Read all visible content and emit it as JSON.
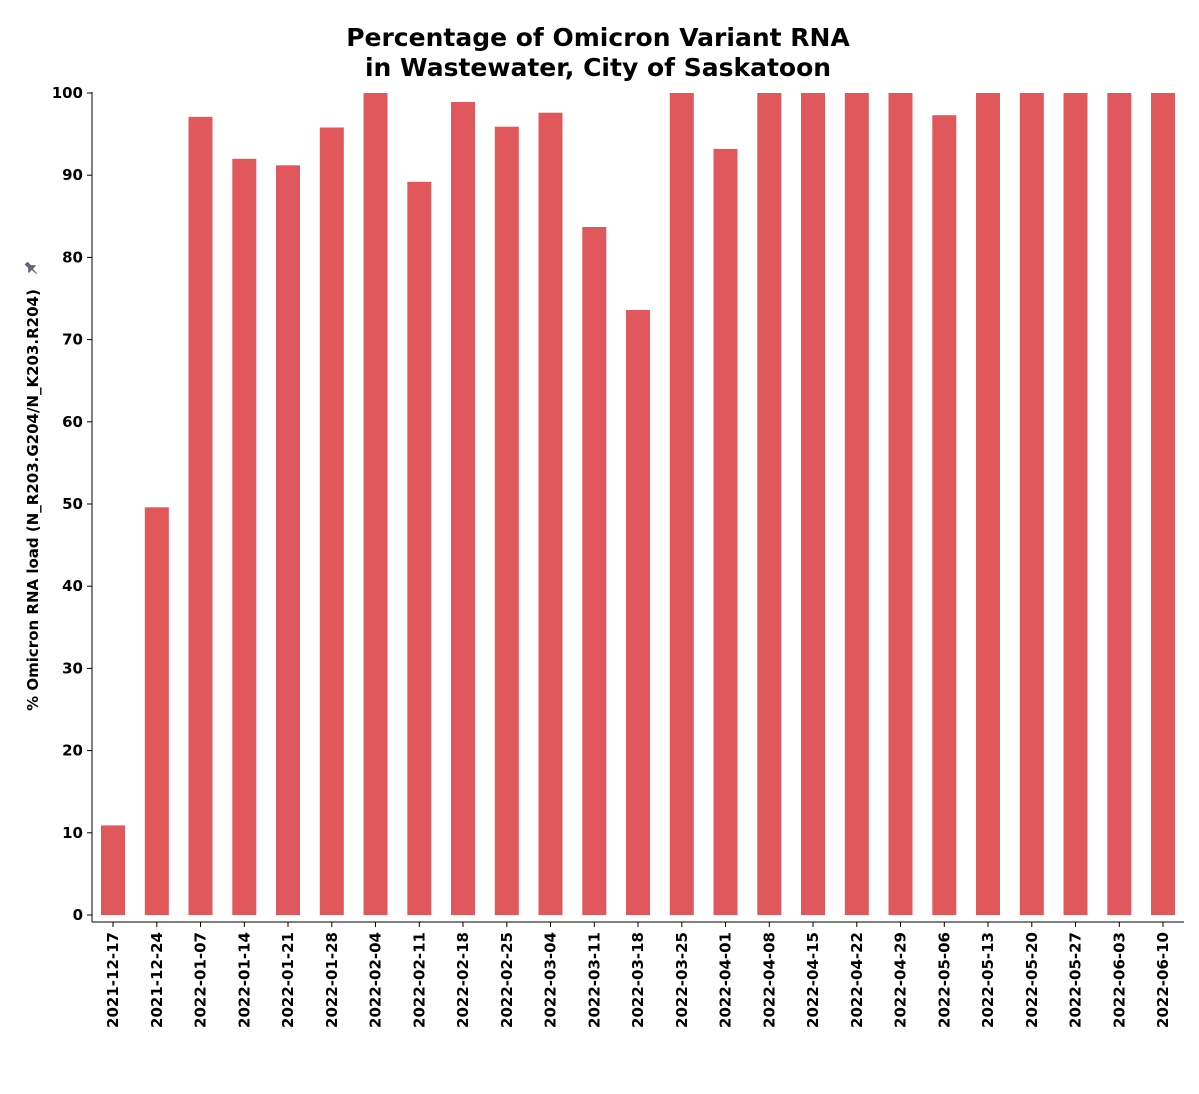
{
  "chart_data": {
    "type": "bar",
    "title_lines": [
      "Percentage of Omicron Variant RNA",
      "in Wastewater, City of Saskatoon"
    ],
    "xlabel": "",
    "ylabel": "% Omicron RNA load (N_R203.G204/N_K203.R204)",
    "ylim": [
      0,
      100
    ],
    "yticks": [
      0,
      10,
      20,
      30,
      40,
      50,
      60,
      70,
      80,
      90,
      100
    ],
    "grid": false,
    "color": "#e0585c",
    "categories": [
      "2021-12-17",
      "2021-12-24",
      "2022-01-07",
      "2022-01-14",
      "2022-01-21",
      "2022-01-28",
      "2022-02-04",
      "2022-02-11",
      "2022-02-18",
      "2022-02-25",
      "2022-03-04",
      "2022-03-11",
      "2022-03-18",
      "2022-03-25",
      "2022-04-01",
      "2022-04-08",
      "2022-04-15",
      "2022-04-22",
      "2022-04-29",
      "2022-05-06",
      "2022-05-13",
      "2022-05-20",
      "2022-05-27",
      "2022-06-03",
      "2022-06-10"
    ],
    "values": [
      10.9,
      49.6,
      97.1,
      92.0,
      91.2,
      95.8,
      100,
      89.2,
      98.9,
      95.9,
      97.6,
      83.7,
      73.6,
      100,
      93.2,
      100,
      100,
      100,
      100,
      97.3,
      100,
      100,
      100,
      100,
      100
    ]
  },
  "icons": {
    "ylabel_marker": "pin-icon"
  }
}
